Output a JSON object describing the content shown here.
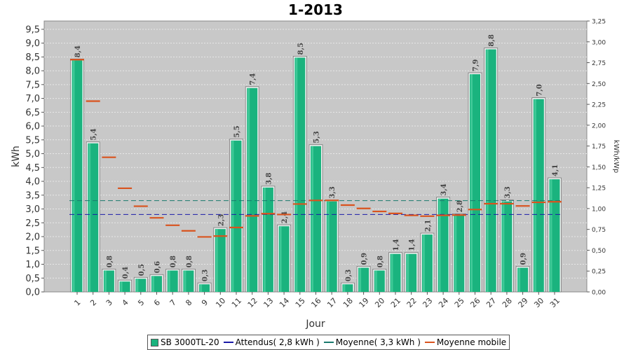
{
  "chart_data": {
    "type": "bar",
    "title": "1-2013",
    "xlabel": "Jour",
    "ylabel": "kWh",
    "ylabel_right": "kWh/kWp",
    "ylim": [
      0,
      9.8
    ],
    "ylim_right": [
      0,
      3.25
    ],
    "yticks": [
      "0,0",
      "0,5",
      "1,0",
      "1,5",
      "2,0",
      "2,5",
      "3,0",
      "3,5",
      "4,0",
      "4,5",
      "5,0",
      "5,5",
      "6,0",
      "6,5",
      "7,0",
      "7,5",
      "8,0",
      "8,5",
      "9,0",
      "9,5"
    ],
    "yticks_right": [
      "0,00",
      "0,25",
      "0,50",
      "0,75",
      "1,00",
      "1,25",
      "1,50",
      "1,75",
      "2,00",
      "2,25",
      "2,50",
      "2,75",
      "3,00",
      "3,25"
    ],
    "categories": [
      "1",
      "2",
      "3",
      "4",
      "5",
      "6",
      "7",
      "8",
      "9",
      "10",
      "11",
      "12",
      "13",
      "14",
      "15",
      "16",
      "17",
      "18",
      "19",
      "20",
      "21",
      "22",
      "23",
      "24",
      "25",
      "26",
      "27",
      "28",
      "29",
      "30",
      "31"
    ],
    "series": [
      {
        "name": "SB 3000TL-20",
        "kind": "bar",
        "color": "#1ab37e",
        "values": [
          8.4,
          5.4,
          0.8,
          0.4,
          0.5,
          0.6,
          0.8,
          0.8,
          0.3,
          2.3,
          5.5,
          7.4,
          3.8,
          2.4,
          8.5,
          5.3,
          3.3,
          0.3,
          0.9,
          0.8,
          1.4,
          1.4,
          2.1,
          3.4,
          2.8,
          7.9,
          8.8,
          3.3,
          0.9,
          7.0,
          4.1
        ],
        "labels": [
          "8,4",
          "5,4",
          "0,8",
          "0,4",
          "0,5",
          "0,6",
          "0,8",
          "0,8",
          "0,3",
          "2,3",
          "5,5",
          "7,4",
          "3,8",
          "2,4",
          "8,5",
          "5,3",
          "3,3",
          "0,3",
          "0,9",
          "0,8",
          "1,4",
          "1,4",
          "2,1",
          "3,4",
          "2,8",
          "7,9",
          "8,8",
          "3,3",
          "0,9",
          "7,0",
          "4,1"
        ]
      },
      {
        "name": "Moyenne mobile",
        "kind": "marker",
        "color": "#d9531e",
        "values": [
          8.4,
          6.9,
          4.87,
          3.75,
          3.1,
          2.68,
          2.41,
          2.21,
          1.99,
          2.02,
          2.33,
          2.75,
          2.83,
          2.8,
          3.18,
          3.31,
          3.31,
          3.14,
          3.02,
          2.91,
          2.84,
          2.77,
          2.74,
          2.77,
          2.78,
          2.98,
          3.19,
          3.19,
          3.11,
          3.24,
          3.26
        ]
      }
    ],
    "reference_lines": [
      {
        "name": "Attendus( 2,8 kWh )",
        "value": 2.8,
        "color": "#1a1aa8"
      },
      {
        "name": "Moyenne( 3,3 kWh )",
        "value": 3.3,
        "color": "#1a7a6e"
      }
    ],
    "grid": true,
    "legend_position": "bottom",
    "colors": {
      "plot_bg": "#c8c8c8",
      "grid": "#e8e8e8",
      "bar": "#1ab37e"
    }
  }
}
